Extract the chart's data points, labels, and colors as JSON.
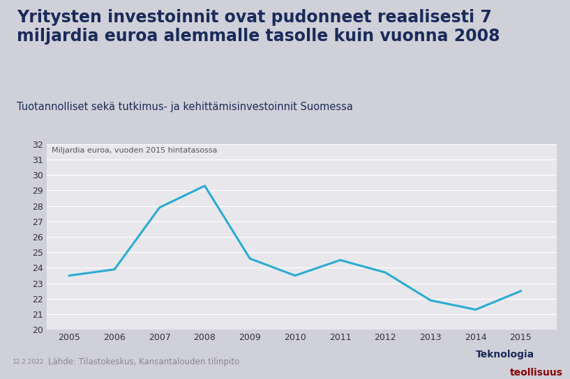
{
  "title_line1": "Yritysten investoinnit ovat pudonneet reaalisesti 7",
  "title_line2": "miljardia euroa alemmalle tasolle kuin vuonna 2008",
  "subtitle": "Tuotannolliset sekä tutkimus- ja kehittämisinvestoinnit Suomessa",
  "annotation": "Miljardia euroa, vuoden 2015 hintatasossa",
  "source": "Lähde: Tilastokeskus, Kansantalouden tilinpito",
  "date_label": "12.2.2022",
  "years": [
    2005,
    2006,
    2007,
    2008,
    2009,
    2010,
    2011,
    2012,
    2013,
    2014,
    2015
  ],
  "values": [
    23.5,
    23.9,
    27.9,
    29.3,
    24.6,
    23.5,
    24.5,
    23.7,
    21.9,
    21.3,
    22.5
  ],
  "line_color": "#29ABD4",
  "line_width": 2.2,
  "ylim": [
    20,
    32
  ],
  "yticks": [
    20,
    21,
    22,
    23,
    24,
    25,
    26,
    27,
    28,
    29,
    30,
    31,
    32
  ],
  "outer_bg": "#D0D0D8",
  "header_bg": "#FFFFFF",
  "chart_bg": "#E8E8EC",
  "title_color": "#1A2B5A",
  "subtitle_color": "#1A2B5A",
  "grid_color": "#FFFFFF",
  "tick_label_color": "#333333",
  "annotation_color": "#555555",
  "source_color": "#888888",
  "date_color": "#888888",
  "logo_text1": "Teknologia",
  "logo_text2": "teollisuus",
  "logo_color1": "#1A2B5A",
  "logo_color2": "#8B0000"
}
